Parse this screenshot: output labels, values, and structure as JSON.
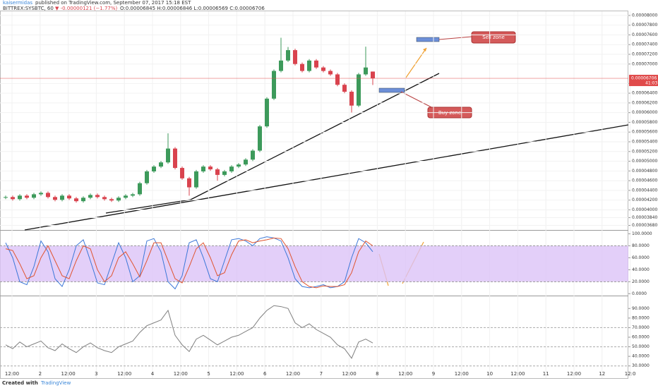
{
  "header": {
    "author": "kaisermidas",
    "byline": "published on TradingView.com, September 07, 2017 15:18 EST",
    "symbol": "BITTREX:SYSBTC, 60",
    "change": "▼ -0.00000121 (−1.77%)",
    "ohlc": "O:0.00006845 H:0.00006846 L:0.00006569 C:0.00006706"
  },
  "footer": {
    "created": "Created with",
    "brand": "TradingView"
  },
  "chart_data": [
    {
      "type": "candlestick",
      "up_color": "#3d9a5b",
      "down_color": "#d9434e",
      "open": [
        4.25e-05,
        4.263e-05,
        4.22e-05,
        4.292e-05,
        4.249e-05,
        4.32e-05,
        4.349e-05,
        4.263e-05,
        4.206e-05,
        4.292e-05,
        4.235e-05,
        4.178e-05,
        4.249e-05,
        4.306e-05,
        4.263e-05,
        4.22e-05,
        4.192e-05,
        4.249e-05,
        4.292e-05,
        4.32e-05,
        4.548e-05,
        4.791e-05,
        4.89e-05,
        4.976e-05,
        5.261e-05,
        4.862e-05,
        4.648e-05,
        4.463e-05,
        4.791e-05,
        4.89e-05,
        4.833e-05,
        4.719e-05,
        4.791e-05,
        4.89e-05,
        4.933e-05,
        5.033e-05,
        5.218e-05,
        5.717e-05,
        6.288e-05,
        6.858e-05,
        7.072e-05,
        7.286e-05,
        7.001e-05,
        6.858e-05,
        7.072e-05,
        6.929e-05,
        6.858e-05,
        6.787e-05,
        6.573e-05,
        6.43e-05,
        6.145e-05,
        6.787e-05,
        6.845e-05
      ],
      "high": [
        4.293e-05,
        4.293e-05,
        4.322e-05,
        4.322e-05,
        4.35e-05,
        4.379e-05,
        4.379e-05,
        4.293e-05,
        4.322e-05,
        4.322e-05,
        4.265e-05,
        4.279e-05,
        4.336e-05,
        4.336e-05,
        4.293e-05,
        4.25e-05,
        4.279e-05,
        4.322e-05,
        4.35e-05,
        4.578e-05,
        4.821e-05,
        4.92e-05,
        5.006e-05,
        5.575e-05,
        5.291e-05,
        4.892e-05,
        4.678e-05,
        4.821e-05,
        4.92e-05,
        4.92e-05,
        4.863e-05,
        4.821e-05,
        4.92e-05,
        4.963e-05,
        5.063e-05,
        5.248e-05,
        5.747e-05,
        6.318e-05,
        6.888e-05,
        7.542e-05,
        7.35e-05,
        7.316e-05,
        7.031e-05,
        7.102e-05,
        7.102e-05,
        6.959e-05,
        6.888e-05,
        6.817e-05,
        6.603e-05,
        6.46e-05,
        6.817e-05,
        7.357e-05,
        6.846e-05
      ],
      "low": [
        4.22e-05,
        4.19e-05,
        4.19e-05,
        4.219e-05,
        4.219e-05,
        4.29e-05,
        4.233e-05,
        4.176e-05,
        4.176e-05,
        4.205e-05,
        4.148e-05,
        4.148e-05,
        4.219e-05,
        4.233e-05,
        4.19e-05,
        4.162e-05,
        4.162e-05,
        4.219e-05,
        4.262e-05,
        4.29e-05,
        4.518e-05,
        4.761e-05,
        4.86e-05,
        4.946e-05,
        4.832e-05,
        4.618e-05,
        4.292e-05,
        4.433e-05,
        4.761e-05,
        4.803e-05,
        4.6e-05,
        4.689e-05,
        4.761e-05,
        4.86e-05,
        4.903e-05,
        5.003e-05,
        5.188e-05,
        5.687e-05,
        6.258e-05,
        6.828e-05,
        7.042e-05,
        6.971e-05,
        6.828e-05,
        6.828e-05,
        6.899e-05,
        6.828e-05,
        6.757e-05,
        6.543e-05,
        6.4e-05,
        6.003e-05,
        6.115e-05,
        6.757e-05,
        6.569e-05
      ],
      "close": [
        4.263e-05,
        4.22e-05,
        4.292e-05,
        4.249e-05,
        4.32e-05,
        4.349e-05,
        4.263e-05,
        4.206e-05,
        4.292e-05,
        4.235e-05,
        4.178e-05,
        4.249e-05,
        4.306e-05,
        4.263e-05,
        4.22e-05,
        4.192e-05,
        4.249e-05,
        4.292e-05,
        4.32e-05,
        4.548e-05,
        4.791e-05,
        4.89e-05,
        4.976e-05,
        5.261e-05,
        4.862e-05,
        4.648e-05,
        4.463e-05,
        4.791e-05,
        4.89e-05,
        4.833e-05,
        4.719e-05,
        4.791e-05,
        4.89e-05,
        4.933e-05,
        5.033e-05,
        5.218e-05,
        5.717e-05,
        6.288e-05,
        6.858e-05,
        7.072e-05,
        7.286e-05,
        7.001e-05,
        6.858e-05,
        7.072e-05,
        6.929e-05,
        6.858e-05,
        6.787e-05,
        6.573e-05,
        6.43e-05,
        6.145e-05,
        6.787e-05,
        6.929e-05,
        6.706e-05
      ],
      "ylim": [
        3.6e-05,
        8.1e-05
      ],
      "yticks": [
        {
          "value": 8e-05,
          "label": "0.00008000"
        },
        {
          "value": 7.8e-05,
          "label": "0.00007800"
        },
        {
          "value": 7.6e-05,
          "label": "0.00007600"
        },
        {
          "value": 7.4e-05,
          "label": "0.00007400"
        },
        {
          "value": 7.2e-05,
          "label": "0.00007200"
        },
        {
          "value": 7e-05,
          "label": "0.00007000"
        },
        {
          "value": 6.6e-05,
          "label": "0.00006600"
        },
        {
          "value": 6.4e-05,
          "label": "0.00006400"
        },
        {
          "value": 6.2e-05,
          "label": "0.00006200"
        },
        {
          "value": 6e-05,
          "label": "0.00006000"
        },
        {
          "value": 5.8e-05,
          "label": "0.00005800"
        },
        {
          "value": 5.6e-05,
          "label": "0.00005600"
        },
        {
          "value": 5.4e-05,
          "label": "0.00005400"
        },
        {
          "value": 5.2e-05,
          "label": "0.00005200"
        },
        {
          "value": 5e-05,
          "label": "0.00005000"
        },
        {
          "value": 4.8e-05,
          "label": "0.00004800"
        },
        {
          "value": 4.6e-05,
          "label": "0.00004600"
        },
        {
          "value": 4.4e-05,
          "label": "0.00004400"
        },
        {
          "value": 4.2e-05,
          "label": "0.00004200"
        },
        {
          "value": 4e-05,
          "label": "0.00004000"
        },
        {
          "value": 3.84e-05,
          "label": "0.00003840"
        },
        {
          "value": 3.68e-05,
          "label": "0.00003680"
        }
      ],
      "price_marker": {
        "value": 6.706e-05,
        "label": "0.00006706",
        "countdown": "41:03",
        "color": "#e04a4a"
      },
      "annotations": [
        "Sell zone",
        "Buy zone"
      ],
      "grid": true
    },
    {
      "type": "line",
      "band": [
        20,
        80
      ],
      "band_color": "#dcc3f7",
      "series": [
        {
          "color": "#3c78d8",
          "values": [
            85,
            60,
            20,
            15,
            45,
            88,
            70,
            25,
            12,
            40,
            80,
            90,
            55,
            18,
            15,
            50,
            85,
            60,
            20,
            30,
            88,
            92,
            70,
            20,
            8,
            30,
            85,
            90,
            60,
            25,
            20,
            55,
            90,
            92,
            88,
            80,
            92,
            95,
            93,
            88,
            60,
            25,
            12,
            10,
            12,
            15,
            10,
            12,
            20,
            60,
            92,
            85,
            70
          ]
        },
        {
          "color": "#e0542f",
          "values": [
            75,
            72,
            50,
            25,
            30,
            60,
            80,
            55,
            30,
            25,
            55,
            80,
            75,
            40,
            20,
            30,
            60,
            70,
            50,
            28,
            55,
            85,
            85,
            55,
            25,
            18,
            45,
            75,
            85,
            60,
            30,
            35,
            65,
            88,
            90,
            85,
            88,
            90,
            93,
            92,
            75,
            45,
            20,
            12,
            10,
            13,
            12,
            12,
            15,
            35,
            70,
            88,
            80
          ]
        }
      ],
      "ylim": [
        -2,
        104
      ],
      "yticks": [
        {
          "value": 100,
          "label": "100.0000"
        },
        {
          "value": 80,
          "label": "80.0000"
        },
        {
          "value": 60,
          "label": "60.0000"
        },
        {
          "value": 40,
          "label": "40.0000"
        },
        {
          "value": 20,
          "label": "20.0000"
        },
        {
          "value": 0,
          "label": "0.0000"
        }
      ]
    },
    {
      "type": "line",
      "hlines": [
        70,
        50,
        30
      ],
      "series": [
        {
          "color": "#808080",
          "values": [
            52,
            48,
            55,
            50,
            53,
            56,
            49,
            46,
            53,
            48,
            44,
            50,
            54,
            49,
            46,
            44,
            50,
            53,
            56,
            65,
            72,
            75,
            78,
            88,
            62,
            52,
            45,
            58,
            62,
            57,
            52,
            56,
            60,
            62,
            66,
            70,
            80,
            88,
            93,
            92,
            90,
            75,
            70,
            74,
            68,
            64,
            60,
            52,
            48,
            38,
            55,
            58,
            54
          ]
        }
      ],
      "ylim": [
        18,
        102
      ],
      "yticks": [
        {
          "value": 90,
          "label": "90.0000"
        },
        {
          "value": 80,
          "label": "80.0000"
        },
        {
          "value": 70,
          "label": "70.0000"
        },
        {
          "value": 60,
          "label": "60.0000"
        },
        {
          "value": 50,
          "label": "50.0000"
        },
        {
          "value": 40,
          "label": "40.0000"
        },
        {
          "value": 30,
          "label": "30.0000"
        }
      ],
      "time_labels": [
        "12:00",
        "2",
        "12:00",
        "3",
        "12:00",
        "4",
        "12:00",
        "5",
        "12:00",
        "6",
        "12:00",
        "7",
        "12:00",
        "8",
        "12:00",
        "9",
        "12:00",
        "10",
        "12:00",
        "11",
        "12:00",
        "12",
        "12:0"
      ]
    }
  ]
}
